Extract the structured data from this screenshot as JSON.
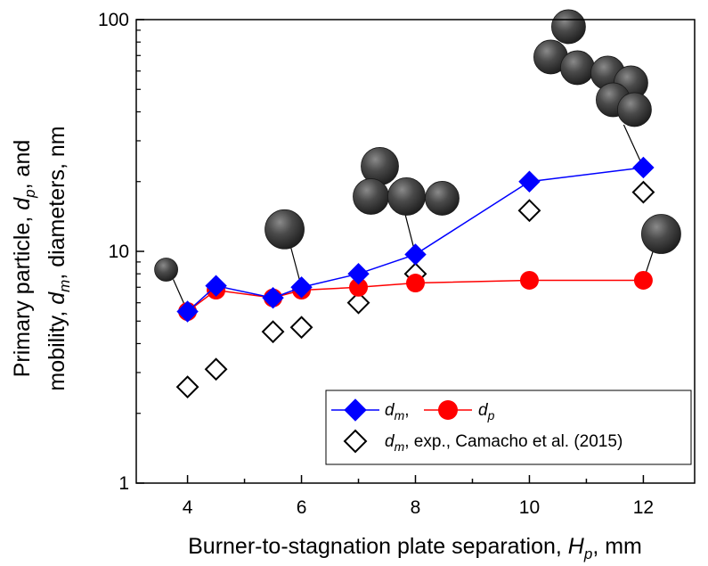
{
  "chart_data": {
    "type": "scatter",
    "yscale": "log",
    "xlim": [
      3.1,
      12.9
    ],
    "ylim": [
      1,
      100
    ],
    "grid": false,
    "x_ticks": [
      "4",
      "6",
      "8",
      "10",
      "12"
    ],
    "y_ticks": [
      "1",
      "10",
      "100"
    ],
    "xlabel": {
      "prefix": "Burner-to-stagnation plate separation, ",
      "symbol": "H",
      "sub": "p",
      "suffix": ", mm"
    },
    "ylabel_line1": {
      "prefix": "Primary particle, ",
      "symbol": "d",
      "sub": "p",
      "suffix": ", and"
    },
    "ylabel_line2": {
      "prefix": "mobility, ",
      "symbol": "d",
      "sub": "m",
      "suffix": ", diameters, nm"
    },
    "legend": {
      "position": "lower-right",
      "entry_dm": {
        "symbol": "d",
        "sub": "m",
        "suffix": ","
      },
      "entry_dp": {
        "symbol": "d",
        "sub": "p"
      },
      "entry_exp": {
        "symbol": "d",
        "sub": "m",
        "suffix": ", exp., Camacho et al. (2015)"
      }
    },
    "series": [
      {
        "key": "dm",
        "style": "line-marker",
        "marker": "diamond-filled",
        "color": "#0000ff",
        "x": [
          4,
          4.5,
          5.5,
          6,
          7,
          8,
          10,
          12
        ],
        "y": [
          5.5,
          7.1,
          6.3,
          7.0,
          8.0,
          9.7,
          20,
          23
        ]
      },
      {
        "key": "dp",
        "style": "line-marker",
        "marker": "circle-filled",
        "color": "#ff0000",
        "x": [
          4,
          4.5,
          5.5,
          6,
          7,
          8,
          10,
          12
        ],
        "y": [
          5.5,
          6.8,
          6.3,
          6.8,
          7.0,
          7.3,
          7.5,
          7.5
        ]
      },
      {
        "key": "dm_exp",
        "style": "marker-only",
        "marker": "diamond-open",
        "color": "#000000",
        "x": [
          4,
          4.5,
          5.5,
          6,
          7,
          8,
          10,
          12
        ],
        "y": [
          2.6,
          3.1,
          4.5,
          4.7,
          6.0,
          8.0,
          15,
          18
        ]
      }
    ],
    "illustrations": [
      {
        "name": "single-primary-particle",
        "attached_to": {
          "x": 4,
          "y": 5.5
        }
      },
      {
        "name": "single-primary-particle",
        "attached_to": {
          "x": 6,
          "y": 7.0
        }
      },
      {
        "name": "aggregate-four-particles",
        "attached_to": {
          "x": 8,
          "y": 9.7
        }
      },
      {
        "name": "aggregate-many-particles",
        "attached_to": {
          "x": 12,
          "y": 23
        }
      },
      {
        "name": "single-primary-particle",
        "attached_to": {
          "x": 12,
          "y": 7.5
        }
      }
    ]
  }
}
